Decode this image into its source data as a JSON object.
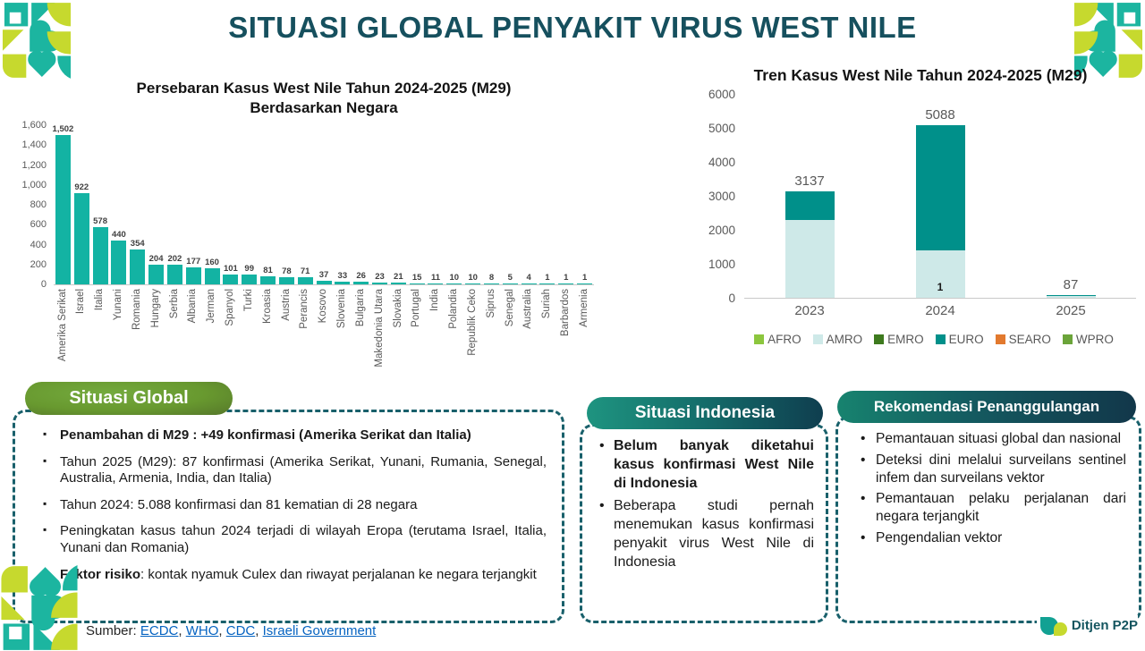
{
  "page": {
    "title": "SITUASI GLOBAL PENYAKIT VIRUS WEST NILE"
  },
  "chart_data": [
    {
      "type": "bar",
      "title": "Persebaran Kasus West Nile Tahun 2024-2025 (M29) Berdasarkan Negara",
      "title_lines": [
        "Persebaran Kasus West Nile Tahun 2024-2025 (M29)",
        "Berdasarkan Negara"
      ],
      "categories": [
        "Amerika Serikat",
        "Israel",
        "Italia",
        "Yunani",
        "Romania",
        "Hungary",
        "Serbia",
        "Albania",
        "Jerman",
        "Spanyol",
        "Turki",
        "Kroasia",
        "Austria",
        "Perancis",
        "Kosovo",
        "Slovenia",
        "Bulgaria",
        "Makedonia Utara",
        "Slovakia",
        "Portugal",
        "India",
        "Polandia",
        "Republik Ceko",
        "Siprus",
        "Senegal",
        "Australia",
        "Suriah",
        "Barbardos",
        "Armenia"
      ],
      "values": [
        1502,
        922,
        578,
        440,
        354,
        204,
        202,
        177,
        160,
        101,
        99,
        81,
        78,
        71,
        37,
        33,
        26,
        23,
        21,
        15,
        11,
        10,
        10,
        8,
        5,
        4,
        1,
        1,
        1
      ],
      "value_labels": [
        "1,502",
        "922",
        "578",
        "440",
        "354",
        "204",
        "202",
        "177",
        "160",
        "101",
        "99",
        "81",
        "78",
        "71",
        "37",
        "33",
        "26",
        "23",
        "21",
        "15",
        "11",
        "10",
        "10",
        "8",
        "5",
        "4",
        "1",
        "1",
        "1"
      ],
      "xlabel": "",
      "ylabel": "",
      "ylim": [
        0,
        1600
      ],
      "yticks": [
        "0",
        "200",
        "400",
        "600",
        "800",
        "1,000",
        "1,200",
        "1,400",
        "1,600"
      ],
      "grid": false,
      "bar_color": "#13B3A3"
    },
    {
      "type": "bar",
      "subtype": "stacked",
      "title": "Tren Kasus West Nile Tahun 2024-2025 (M29)",
      "categories": [
        "2023",
        "2024",
        "2025"
      ],
      "series": [
        {
          "name": "AFRO",
          "color": "#8CC63E",
          "values": [
            0,
            0,
            0
          ]
        },
        {
          "name": "AMRO",
          "color": "#CEE9E8",
          "values": [
            2300,
            1404,
            60
          ]
        },
        {
          "name": "EMRO",
          "color": "#3E7A1E",
          "values": [
            0,
            0,
            0
          ]
        },
        {
          "name": "EURO",
          "color": "#00908A",
          "values": [
            837,
            3683,
            27
          ]
        },
        {
          "name": "SEARO",
          "color": "#E2792E",
          "values": [
            0,
            1,
            0
          ]
        },
        {
          "name": "WPRO",
          "color": "#6BA43A",
          "values": [
            0,
            0,
            0
          ]
        }
      ],
      "totals": [
        3137,
        5088,
        87
      ],
      "total_labels": [
        "3137",
        "5088",
        "87"
      ],
      "inner_labels": [
        "",
        "1",
        ""
      ],
      "xlabel": "",
      "ylabel": "",
      "ylim": [
        0,
        6000
      ],
      "yticks": [
        "0",
        "1000",
        "2000",
        "3000",
        "4000",
        "5000",
        "6000"
      ],
      "grid": false,
      "legend_position": "bottom"
    }
  ],
  "boxes": {
    "global": {
      "header": "Situasi Global",
      "items": [
        {
          "bold": "Penambahan di M29 : +49 konfirmasi (Amerika Serikat dan Italia)",
          "text": ""
        },
        {
          "bold": "",
          "text": "Tahun 2025 (M29): 87 konfirmasi (Amerika Serikat, Yunani, Rumania, Senegal, Australia, Armenia, India, dan Italia)"
        },
        {
          "bold": "",
          "text": "Tahun 2024: 5.088 konfirmasi dan 81 kematian di 28 negara"
        },
        {
          "bold": "",
          "text": "Peningkatan kasus tahun 2024 terjadi di wilayah Eropa (terutama Israel, Italia, Yunani dan Romania)"
        },
        {
          "bold": "Faktor risiko",
          "text": ": kontak nyamuk Culex dan riwayat perjalanan ke negara terjangkit"
        }
      ]
    },
    "indonesia": {
      "header": "Situasi Indonesia",
      "items": [
        {
          "bold": "Belum banyak diketahui kasus konfirmasi West Nile di Indonesia",
          "text": ""
        },
        {
          "bold": "",
          "text": "Beberapa studi pernah menemukan kasus konfirmasi penyakit virus West Nile di Indonesia"
        }
      ]
    },
    "rekomendasi": {
      "header": "Rekomendasi Penanggulangan",
      "items": [
        {
          "bold": "",
          "text": "Pemantauan situasi global dan nasional"
        },
        {
          "bold": "",
          "text": "Deteksi dini melalui surveilans sentinel infem dan surveilans vektor"
        },
        {
          "bold": "",
          "text": "Pemantauan pelaku perjalanan dari negara terjangkit"
        },
        {
          "bold": "",
          "text": "Pengendalian vektor"
        }
      ]
    }
  },
  "footer": {
    "source_label": "Sumber:",
    "links": [
      "ECDC",
      "WHO",
      "CDC",
      "Israeli Government"
    ],
    "logo_text": "Ditjen P2P"
  },
  "colors": {
    "accent_teal": "#13B3A3",
    "dark_teal": "#16505E",
    "border_teal": "#19606B",
    "lime": "#C6D92E",
    "link_blue": "#0563C1"
  }
}
